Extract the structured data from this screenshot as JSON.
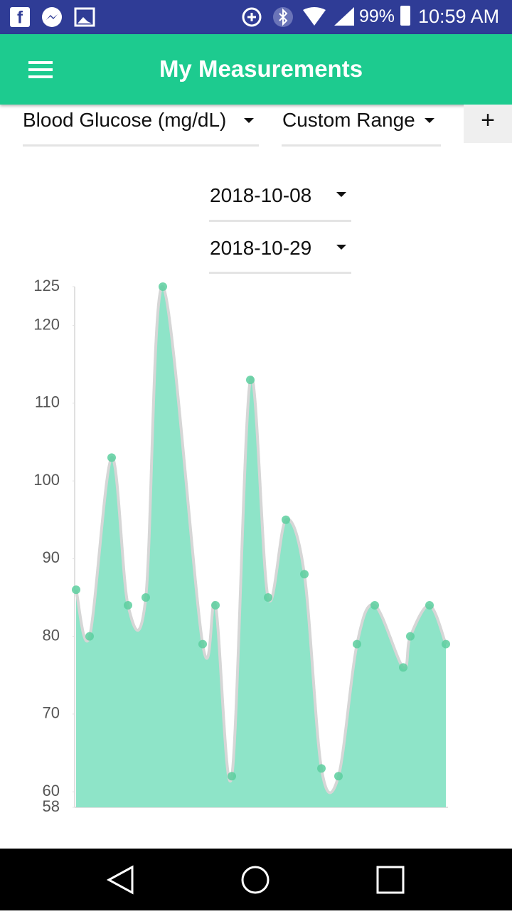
{
  "status_bar": {
    "battery": "99%",
    "time": "10:59 AM"
  },
  "app_bar": {
    "title": "My Measurements"
  },
  "filters": {
    "measurement": "Blood Glucose (mg/dL)",
    "range": "Custom Range",
    "add": "+"
  },
  "date_range": {
    "start": "2018-10-08",
    "end": "2018-10-29"
  },
  "chart_data": {
    "type": "area",
    "values": [
      86,
      80,
      103,
      84,
      85,
      125,
      79,
      84,
      62,
      113,
      85,
      95,
      88,
      63,
      62,
      79,
      84,
      76,
      80,
      84,
      79
    ],
    "ylim": [
      58,
      125
    ],
    "yticks": [
      58,
      60,
      70,
      80,
      90,
      100,
      110,
      120,
      125
    ],
    "color": "#8ee4c8",
    "line_color": "#d6d6d6",
    "point_color": "#5ccf9f"
  }
}
